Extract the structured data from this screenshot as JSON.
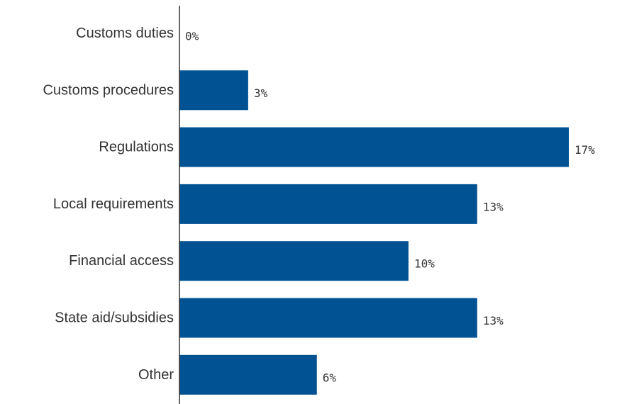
{
  "chart_data": {
    "type": "bar",
    "orientation": "horizontal",
    "categories": [
      "Customs duties",
      "Customs procedures",
      "Regulations",
      "Local requirements",
      "Financial access",
      "State aid/subsidies",
      "Other"
    ],
    "values": [
      0,
      3,
      17,
      13,
      10,
      13,
      6
    ],
    "value_labels": [
      "0%",
      "3%",
      "17%",
      "13%",
      "10%",
      "13%",
      "6%"
    ],
    "xlim": [
      0,
      17
    ],
    "grid": false,
    "legend": "none",
    "colors": {
      "bar": "#005293",
      "axis": "#333333",
      "text": "#333333"
    }
  }
}
